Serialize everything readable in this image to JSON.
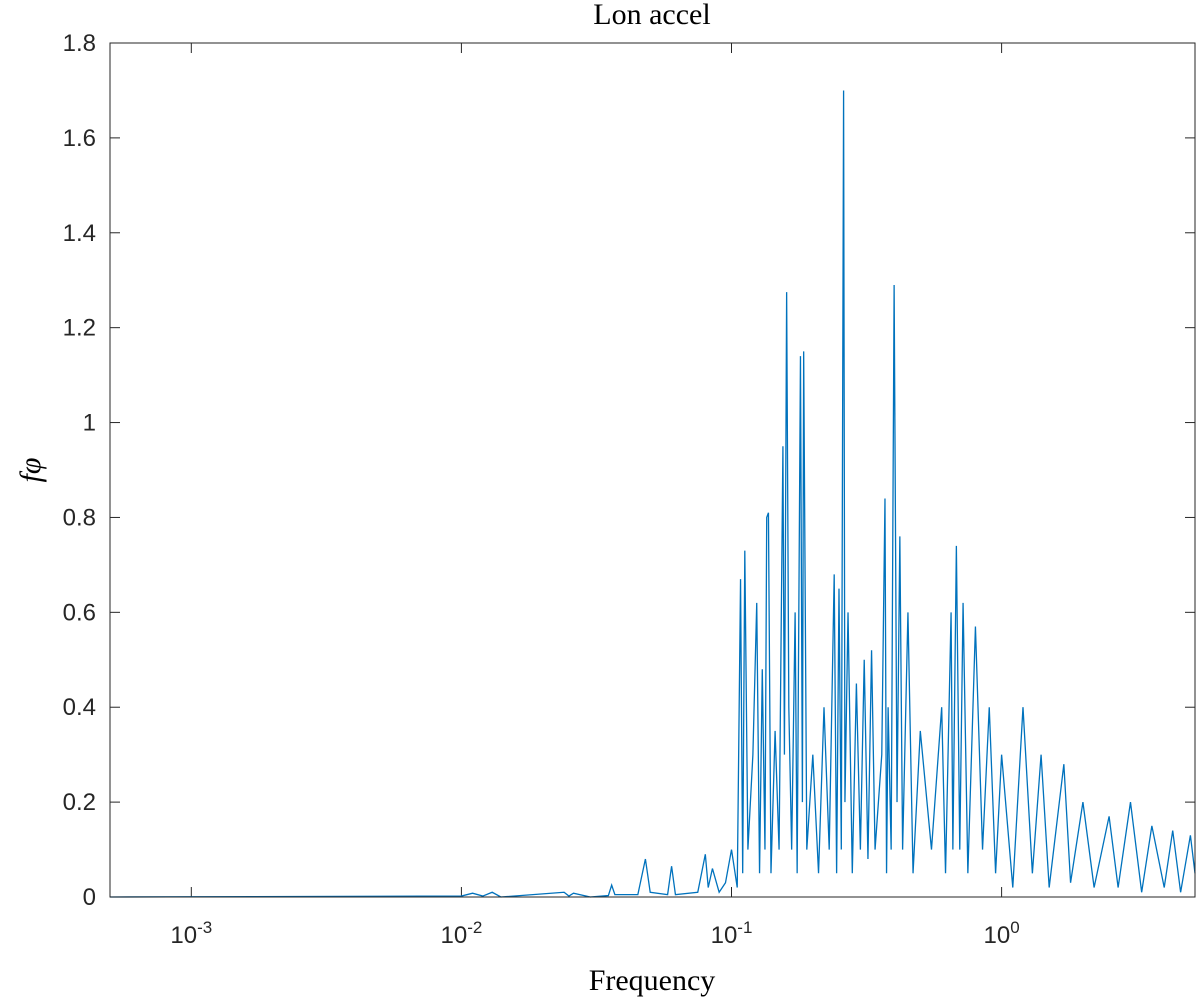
{
  "chart_data": {
    "type": "line",
    "title": "Lon accel",
    "x_label": "Frequency",
    "y_label": "fφ",
    "log_x": true,
    "grid": false,
    "color": "#0072bd",
    "xlim": [
      0.0005,
      5.2
    ],
    "ylim": [
      0,
      1.8
    ],
    "xticks": [
      {
        "value": 0.001,
        "label": "10^-3"
      },
      {
        "value": 0.01,
        "label": "10^-2"
      },
      {
        "value": 0.1,
        "label": "10^-1"
      },
      {
        "value": 1,
        "label": "10^0"
      }
    ],
    "yticks": [
      0,
      0.2,
      0.4,
      0.6,
      0.8,
      1,
      1.2,
      1.4,
      1.6,
      1.8
    ],
    "x": [
      0.0005,
      0.01,
      0.011,
      0.012,
      0.013,
      0.014,
      0.024,
      0.025,
      0.026,
      0.03,
      0.035,
      0.036,
      0.037,
      0.045,
      0.048,
      0.05,
      0.058,
      0.06,
      0.062,
      0.075,
      0.08,
      0.082,
      0.085,
      0.09,
      0.095,
      0.1,
      0.105,
      0.108,
      0.11,
      0.112,
      0.115,
      0.12,
      0.124,
      0.127,
      0.13,
      0.133,
      0.135,
      0.137,
      0.14,
      0.145,
      0.15,
      0.155,
      0.157,
      0.16,
      0.163,
      0.167,
      0.172,
      0.175,
      0.18,
      0.183,
      0.185,
      0.19,
      0.2,
      0.21,
      0.22,
      0.23,
      0.24,
      0.245,
      0.25,
      0.255,
      0.26,
      0.263,
      0.27,
      0.28,
      0.29,
      0.3,
      0.31,
      0.32,
      0.33,
      0.34,
      0.36,
      0.37,
      0.375,
      0.38,
      0.39,
      0.4,
      0.41,
      0.42,
      0.43,
      0.45,
      0.47,
      0.5,
      0.55,
      0.6,
      0.62,
      0.65,
      0.66,
      0.68,
      0.7,
      0.72,
      0.75,
      0.8,
      0.85,
      0.9,
      0.95,
      1.0,
      1.1,
      1.2,
      1.3,
      1.4,
      1.5,
      1.7,
      1.8,
      2.0,
      2.2,
      2.5,
      2.7,
      3.0,
      3.3,
      3.6,
      4.0,
      4.3,
      4.6,
      5.0,
      5.2
    ],
    "values": [
      0,
      0.002,
      0.008,
      0.002,
      0.01,
      0,
      0.01,
      0.002,
      0.008,
      0,
      0.003,
      0.025,
      0.005,
      0.005,
      0.08,
      0.01,
      0.005,
      0.065,
      0.005,
      0.01,
      0.09,
      0.02,
      0.06,
      0.01,
      0.03,
      0.1,
      0.02,
      0.67,
      0.05,
      0.73,
      0.1,
      0.3,
      0.62,
      0.05,
      0.48,
      0.1,
      0.8,
      0.81,
      0.05,
      0.35,
      0.1,
      0.95,
      0.3,
      1.275,
      0.4,
      0.1,
      0.6,
      0.05,
      1.14,
      0.2,
      1.15,
      0.1,
      0.3,
      0.05,
      0.4,
      0.1,
      0.68,
      0.05,
      0.65,
      0.1,
      1.7,
      0.2,
      0.6,
      0.05,
      0.45,
      0.1,
      0.5,
      0.08,
      0.52,
      0.1,
      0.3,
      0.84,
      0.05,
      0.4,
      0.1,
      1.29,
      0.2,
      0.76,
      0.1,
      0.6,
      0.05,
      0.35,
      0.1,
      0.4,
      0.05,
      0.6,
      0.1,
      0.74,
      0.1,
      0.62,
      0.05,
      0.57,
      0.1,
      0.4,
      0.05,
      0.3,
      0.02,
      0.4,
      0.05,
      0.3,
      0.02,
      0.28,
      0.03,
      0.2,
      0.02,
      0.17,
      0.02,
      0.2,
      0.01,
      0.15,
      0.02,
      0.14,
      0.01,
      0.13,
      0.05
    ]
  }
}
